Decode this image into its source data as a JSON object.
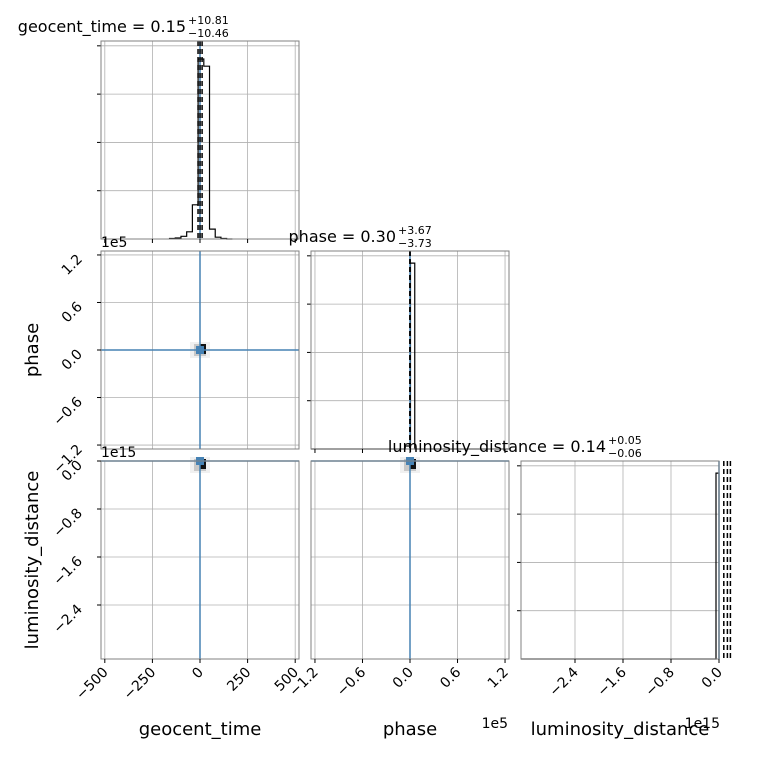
{
  "chart_data": {
    "type": "corner",
    "parameters": [
      "geocent_time",
      "phase",
      "luminosity_distance"
    ],
    "grid": true,
    "colors": {
      "histogram": "#000000",
      "truth_line": "#4682b4",
      "quantile_line": "#000000",
      "frame": "#808080",
      "grid": "#b0b0b0"
    },
    "titles": [
      {
        "param": "geocent_time",
        "text": "geocent_time = 0.15",
        "plus": "+10.81",
        "minus": "−10.46"
      },
      {
        "param": "phase",
        "text": "phase = 0.30",
        "plus": "+3.67",
        "minus": "−3.73"
      },
      {
        "param": "luminosity_distance",
        "text": "luminosity_distance = 0.14",
        "plus": "+0.05",
        "minus": "−0.06"
      }
    ],
    "xlim": {
      "geocent_time": [
        -520,
        520
      ],
      "phase": [
        -125000,
        125000
      ],
      "luminosity_distance": [
        -3.3,
        0.0
      ]
    },
    "xticks": {
      "geocent_time": {
        "values": [
          -500,
          -250,
          0,
          250,
          500
        ],
        "labels": [
          "−500",
          "−250",
          "0",
          "250",
          "500"
        ]
      },
      "phase": {
        "values": [
          -120000,
          -60000,
          0,
          60000,
          120000
        ],
        "labels": [
          "−1.2",
          "−0.6",
          "0.0",
          "0.6",
          "1.2"
        ],
        "offset": "1e5"
      },
      "luminosity_distance": {
        "values": [
          -2.4,
          -1.6,
          -0.8,
          0.0
        ],
        "labels": [
          "−2.4",
          "−1.6",
          "−0.8",
          "0.0"
        ],
        "offset": "1e15"
      }
    },
    "yticks": {
      "phase": {
        "values": [
          120000,
          60000,
          0,
          -60000,
          -120000
        ],
        "labels": [
          "1.2",
          "0.6",
          "0.0",
          "−0.6",
          "−1.2"
        ],
        "offset": "1e5"
      },
      "luminosity_distance": {
        "values": [
          0.0,
          -0.8,
          -1.6,
          -2.4
        ],
        "labels": [
          "0.0",
          "−0.8",
          "−1.6",
          "−2.4"
        ],
        "offset": "1e15"
      }
    },
    "xlabels": [
      "geocent_time",
      "phase",
      "luminosity_distance"
    ],
    "ylabels": [
      "",
      "phase",
      "luminosity_distance"
    ],
    "histograms": {
      "geocent_time": {
        "edges": [
          -160,
          -130,
          -100,
          -70,
          -40,
          -10,
          20,
          50,
          80,
          110,
          140,
          170
        ],
        "counts": [
          0.3,
          0.6,
          1.5,
          4.0,
          19.0,
          100,
          96.0,
          5.5,
          1.0,
          0.3,
          0
        ],
        "ymax": 110,
        "quantiles": [
          -10.3,
          0.15,
          11.0
        ]
      },
      "phase": {
        "edges": [
          -125000,
          -6000,
          600,
          6000,
          125000
        ],
        "counts": [
          0,
          1.5,
          92,
          0
        ],
        "ymax": 98,
        "quantiles": [
          -3.43,
          0.3,
          3.97
        ]
      },
      "luminosity_distance": {
        "edges": [
          -3.3,
          -0.05,
          0.0
        ],
        "counts": [
          0,
          92
        ],
        "ymax": 98,
        "quantiles": [
          0.08,
          0.14,
          0.19
        ]
      }
    },
    "truths": {
      "geocent_time": 0,
      "phase": 0,
      "luminosity_distance": 0
    }
  }
}
